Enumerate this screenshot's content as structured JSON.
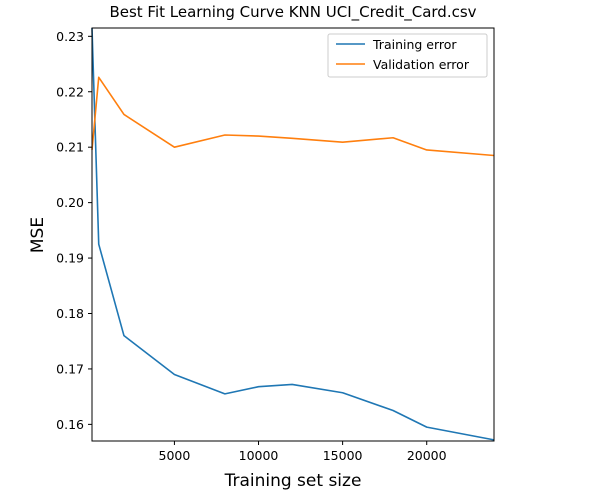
{
  "chart_data": {
    "type": "line",
    "title": "Best Fit Learning Curve KNN UCI_Credit_Card.csv",
    "xlabel": "Training set size",
    "ylabel": "MSE",
    "xlim": [
      100,
      24000
    ],
    "ylim": [
      0.157,
      0.2315
    ],
    "x_ticks": [
      5000,
      10000,
      15000,
      20000
    ],
    "y_ticks": [
      0.16,
      0.17,
      0.18,
      0.19,
      0.2,
      0.21,
      0.22,
      0.23
    ],
    "legend_position": "top-right",
    "grid": false,
    "series": [
      {
        "name": "Training error",
        "color": "#1f77b4",
        "x": [
          100,
          500,
          2000,
          5000,
          8000,
          10000,
          12000,
          15000,
          18000,
          20000,
          24000
        ],
        "y": [
          0.2315,
          0.1925,
          0.176,
          0.169,
          0.1655,
          0.1668,
          0.1672,
          0.1657,
          0.1625,
          0.1595,
          0.1572
        ]
      },
      {
        "name": "Validation error",
        "color": "#ff7f0e",
        "x": [
          100,
          500,
          2000,
          5000,
          8000,
          10000,
          12000,
          15000,
          18000,
          20000,
          24000
        ],
        "y": [
          0.2095,
          0.2226,
          0.2159,
          0.21,
          0.2122,
          0.212,
          0.2116,
          0.2109,
          0.2117,
          0.2095,
          0.2085
        ]
      }
    ]
  }
}
